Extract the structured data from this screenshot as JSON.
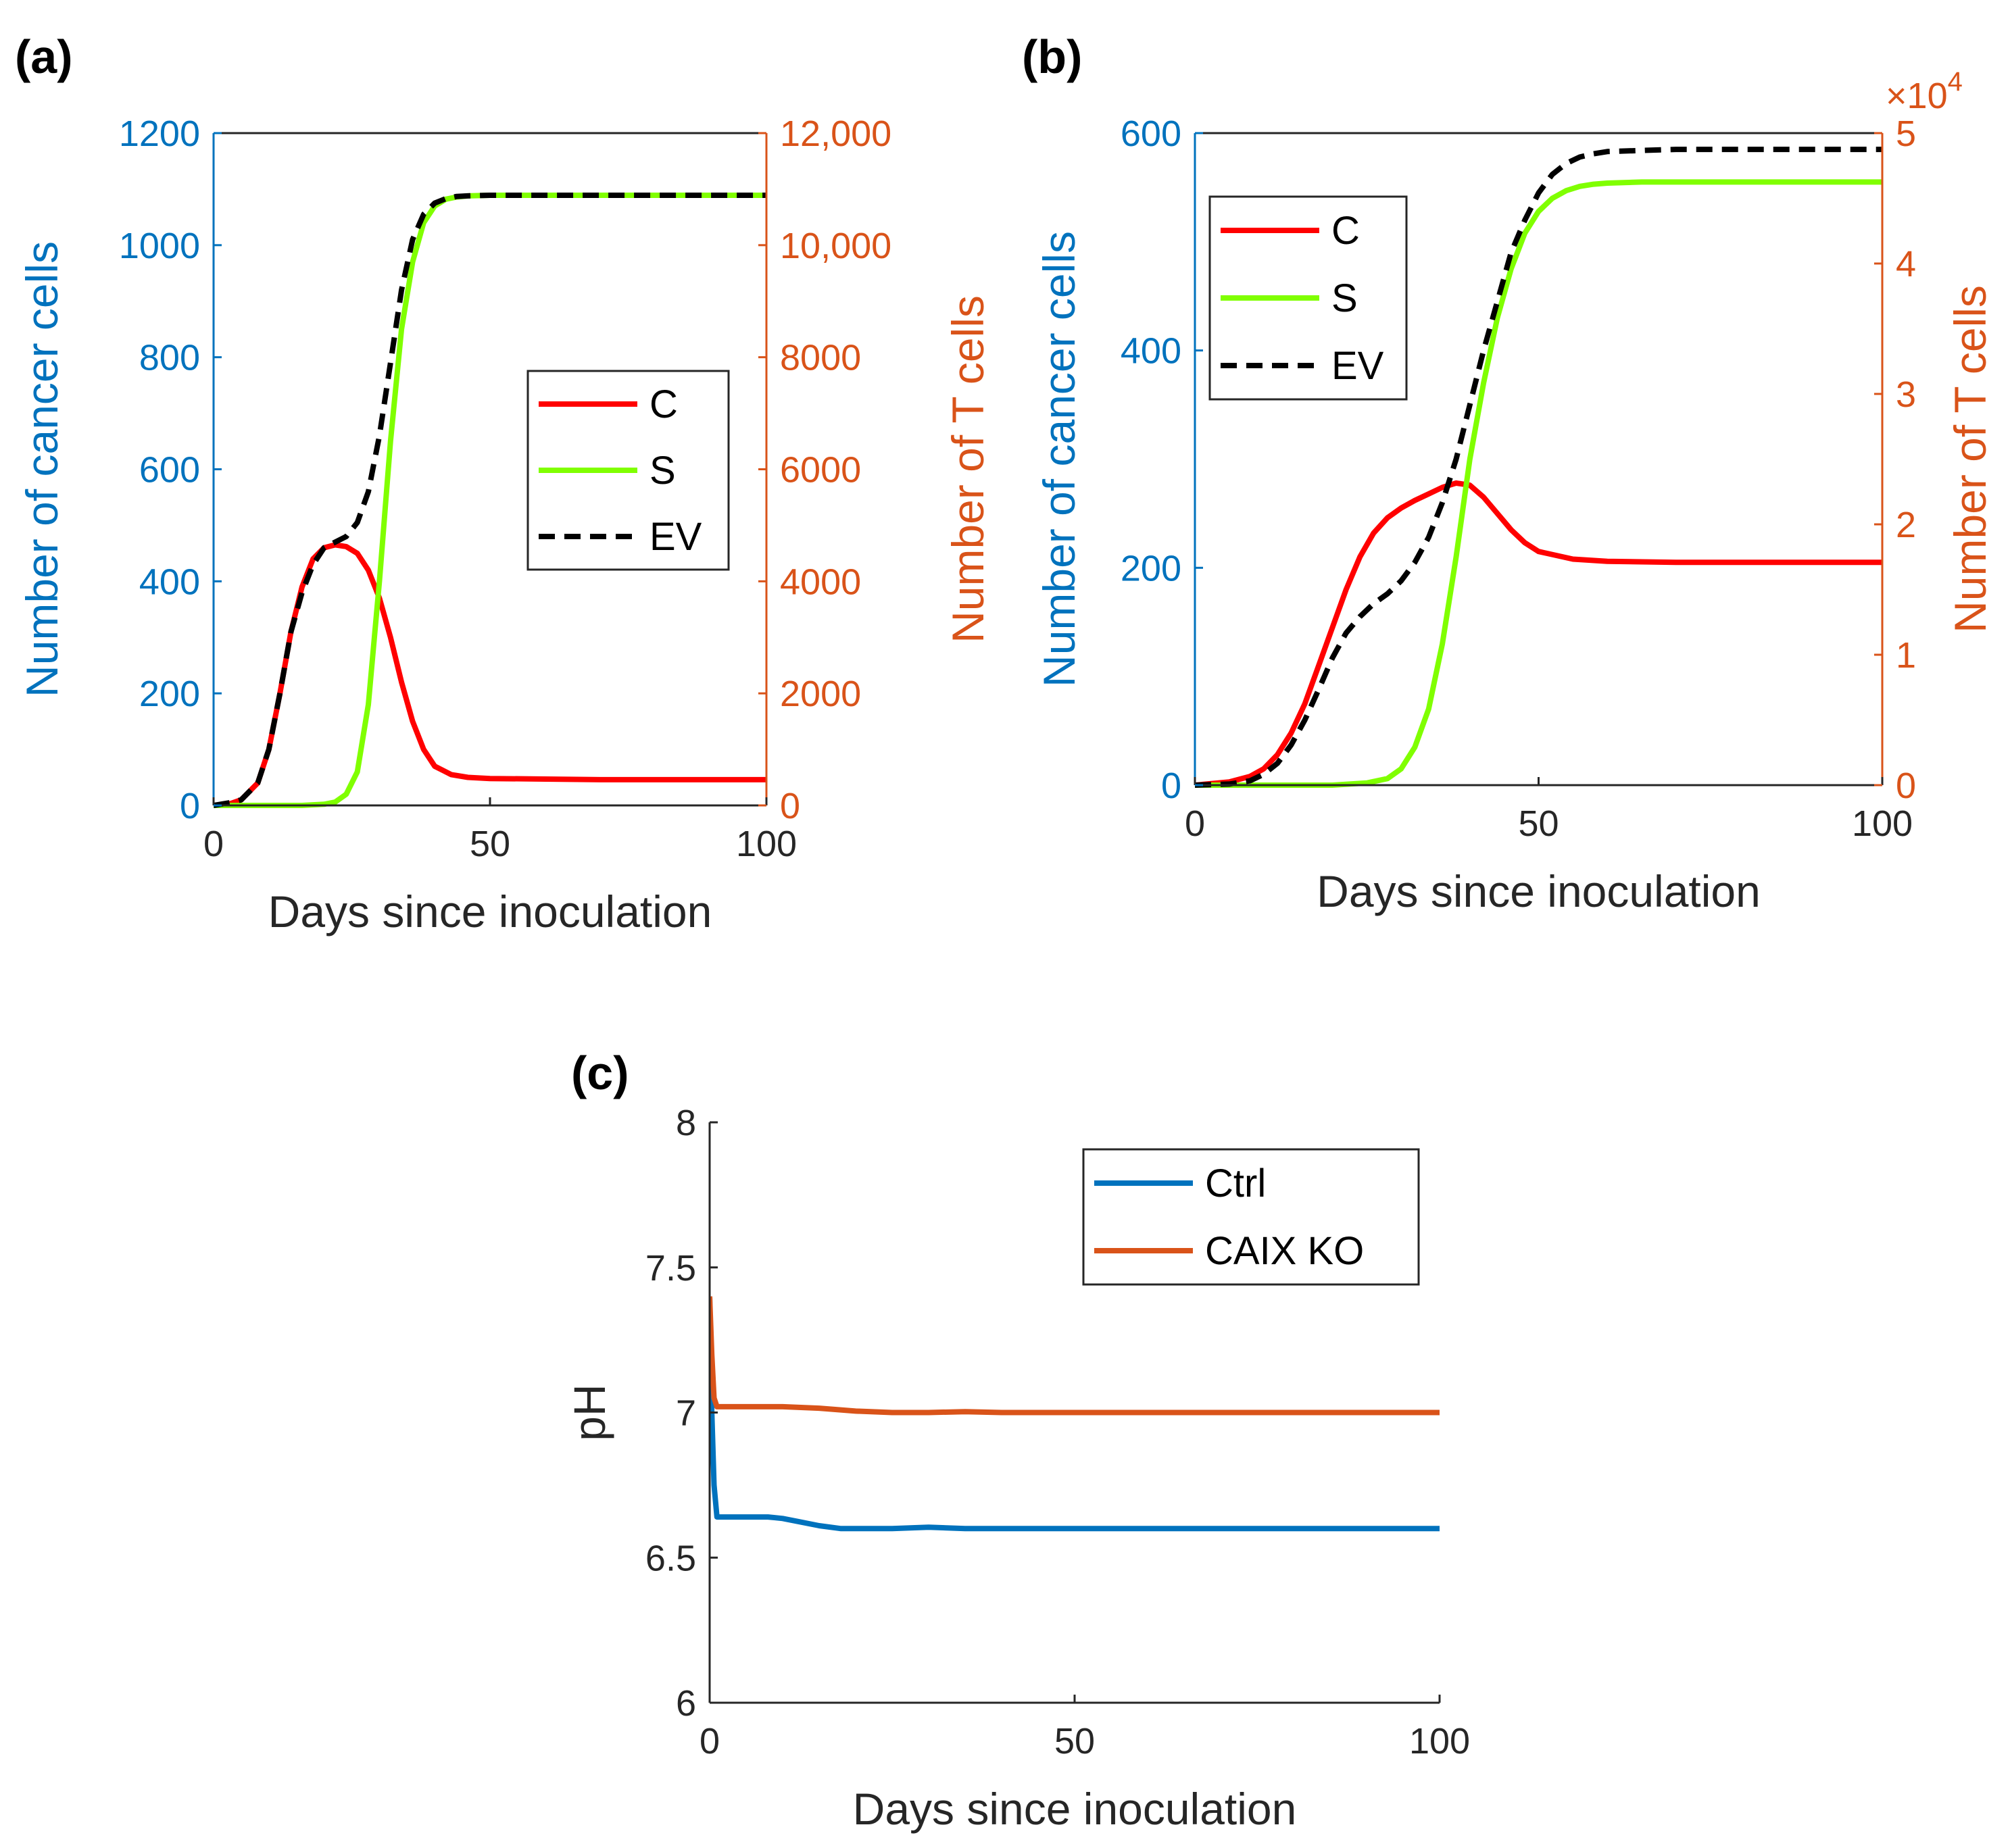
{
  "colors": {
    "left_axis": "#0072BD",
    "right_axis": "#D95319",
    "C": "#FF0000",
    "S": "#80FF00",
    "EV": "#000000",
    "ctrl": "#0072BD",
    "caix": "#D95319",
    "axis": "#262626"
  },
  "chart_data": [
    {
      "id": "a",
      "panel_label": "(a)",
      "type": "line",
      "xlabel": "Days since inoculation",
      "ylabel": "Number of cancer cells",
      "y2label": "Number of T cells",
      "xlim": [
        0,
        100
      ],
      "ylim": [
        0,
        1200
      ],
      "y2lim": [
        0,
        12000
      ],
      "x_ticks": [
        0,
        50,
        100
      ],
      "x_tick_labels": [
        "0",
        "50",
        "100"
      ],
      "y_ticks": [
        0,
        200,
        400,
        600,
        800,
        1000,
        1200
      ],
      "y_tick_labels": [
        "0",
        "200",
        "400",
        "600",
        "800",
        "1000",
        "1200"
      ],
      "y2_ticks": [
        0,
        2000,
        4000,
        6000,
        8000,
        10000,
        12000
      ],
      "y2_tick_labels": [
        "0",
        "2000",
        "4000",
        "6000",
        "8000",
        "10,000",
        "12,000"
      ],
      "grid": false,
      "legend_position": "center-right",
      "series": [
        {
          "name": "C",
          "color_key": "C",
          "dash": false,
          "x": [
            0,
            3,
            5,
            8,
            10,
            12,
            14,
            16,
            18,
            20,
            22,
            24,
            26,
            28,
            30,
            32,
            34,
            36,
            38,
            40,
            43,
            46,
            50,
            60,
            70,
            80,
            90,
            100
          ],
          "y": [
            0,
            3,
            10,
            40,
            100,
            200,
            310,
            390,
            440,
            460,
            465,
            462,
            450,
            420,
            370,
            300,
            220,
            150,
            100,
            70,
            55,
            50,
            48,
            47,
            46,
            46,
            46,
            46
          ]
        },
        {
          "name": "S",
          "color_key": "S",
          "dash": false,
          "x": [
            0,
            16,
            20,
            22,
            24,
            26,
            28,
            30,
            32,
            34,
            36,
            38,
            40,
            42,
            44,
            46,
            50,
            60,
            70,
            80,
            90,
            100
          ],
          "y": [
            0,
            0,
            2,
            6,
            20,
            60,
            180,
            400,
            650,
            850,
            970,
            1040,
            1070,
            1082,
            1086,
            1088,
            1089,
            1089,
            1089,
            1089,
            1089,
            1089
          ]
        },
        {
          "name": "EV",
          "color_key": "EV",
          "dash": true,
          "x": [
            0,
            3,
            5,
            8,
            10,
            12,
            14,
            16,
            18,
            20,
            22,
            24,
            26,
            28,
            30,
            32,
            34,
            36,
            38,
            40,
            42,
            44,
            46,
            50,
            60,
            70,
            80,
            90,
            100
          ],
          "y": [
            0,
            5,
            10,
            40,
            100,
            200,
            310,
            380,
            430,
            460,
            470,
            480,
            505,
            560,
            660,
            790,
            920,
            1010,
            1055,
            1075,
            1083,
            1087,
            1088,
            1089,
            1089,
            1089,
            1089,
            1089,
            1089
          ]
        }
      ]
    },
    {
      "id": "b",
      "panel_label": "(b)",
      "type": "line",
      "xlabel": "Days since inoculation",
      "ylabel": "Number of cancer cells",
      "y2label": "Number of T cells",
      "y2_exponent": "×10",
      "y2_exponent_power": "4",
      "xlim": [
        0,
        100
      ],
      "ylim": [
        0,
        600
      ],
      "y2lim": [
        0,
        5
      ],
      "x_ticks": [
        0,
        50,
        100
      ],
      "x_tick_labels": [
        "0",
        "50",
        "100"
      ],
      "y_ticks": [
        0,
        200,
        400,
        600
      ],
      "y_tick_labels": [
        "0",
        "200",
        "400",
        "600"
      ],
      "y2_ticks": [
        0,
        1,
        2,
        3,
        4,
        5
      ],
      "y2_tick_labels": [
        "0",
        "1",
        "2",
        "3",
        "4",
        "5"
      ],
      "grid": false,
      "legend_position": "top-left",
      "series": [
        {
          "name": "C",
          "color_key": "C",
          "dash": false,
          "x": [
            0,
            5,
            8,
            10,
            12,
            14,
            16,
            18,
            20,
            22,
            24,
            26,
            28,
            30,
            32,
            34,
            36,
            38,
            40,
            42,
            44,
            46,
            48,
            50,
            55,
            60,
            70,
            80,
            100
          ],
          "y": [
            0,
            3,
            8,
            15,
            28,
            48,
            75,
            110,
            145,
            180,
            210,
            232,
            246,
            255,
            262,
            268,
            274,
            278,
            276,
            265,
            250,
            235,
            223,
            215,
            208,
            206,
            205,
            205,
            205
          ]
        },
        {
          "name": "S",
          "color_key": "S",
          "dash": false,
          "x": [
            0,
            20,
            25,
            28,
            30,
            32,
            34,
            36,
            38,
            40,
            42,
            44,
            46,
            48,
            50,
            52,
            54,
            56,
            58,
            60,
            65,
            70,
            80,
            100
          ],
          "y": [
            0,
            0,
            2,
            6,
            15,
            35,
            70,
            130,
            210,
            300,
            370,
            430,
            475,
            508,
            528,
            540,
            547,
            551,
            553,
            554,
            555,
            555,
            555,
            555
          ]
        },
        {
          "name": "EV",
          "color_key": "EV",
          "dash": true,
          "x": [
            0,
            5,
            8,
            10,
            12,
            14,
            16,
            18,
            20,
            22,
            24,
            26,
            28,
            30,
            32,
            34,
            36,
            38,
            40,
            42,
            44,
            46,
            48,
            50,
            52,
            54,
            56,
            58,
            60,
            65,
            70,
            80,
            100
          ],
          "y": [
            0,
            1,
            4,
            10,
            20,
            37,
            60,
            88,
            117,
            140,
            155,
            167,
            176,
            188,
            205,
            228,
            260,
            300,
            350,
            400,
            445,
            490,
            520,
            545,
            562,
            572,
            578,
            581,
            583,
            584,
            585,
            585,
            585
          ]
        }
      ]
    },
    {
      "id": "c",
      "panel_label": "(c)",
      "type": "line",
      "xlabel": "Days since inoculation",
      "ylabel": "pH",
      "xlim": [
        0,
        100
      ],
      "ylim": [
        6,
        8
      ],
      "x_ticks": [
        0,
        50,
        100
      ],
      "x_tick_labels": [
        "0",
        "50",
        "100"
      ],
      "y_ticks": [
        6,
        6.5,
        7,
        7.5,
        8
      ],
      "y_tick_labels": [
        "6",
        "6.5",
        "7",
        "7.5",
        "8"
      ],
      "grid": false,
      "legend_position": "top-right",
      "series": [
        {
          "name": "Ctrl",
          "color_key": "ctrl",
          "dash": false,
          "x": [
            0,
            0.3,
            0.6,
            1,
            2,
            5,
            8,
            10,
            12,
            15,
            18,
            20,
            25,
            30,
            35,
            40,
            50,
            60,
            80,
            100
          ],
          "y": [
            7.4,
            7.0,
            6.75,
            6.64,
            6.64,
            6.64,
            6.64,
            6.635,
            6.625,
            6.61,
            6.6,
            6.6,
            6.6,
            6.605,
            6.6,
            6.6,
            6.6,
            6.6,
            6.6,
            6.6
          ]
        },
        {
          "name": "CAIX KO",
          "color_key": "caix",
          "dash": false,
          "x": [
            0,
            0.3,
            0.6,
            1,
            2,
            5,
            10,
            15,
            20,
            25,
            30,
            35,
            40,
            50,
            60,
            80,
            100
          ],
          "y": [
            7.4,
            7.2,
            7.05,
            7.02,
            7.02,
            7.02,
            7.02,
            7.015,
            7.005,
            7.0,
            7.0,
            7.003,
            7.0,
            7.0,
            7.0,
            7.0,
            7.0
          ]
        }
      ]
    }
  ]
}
